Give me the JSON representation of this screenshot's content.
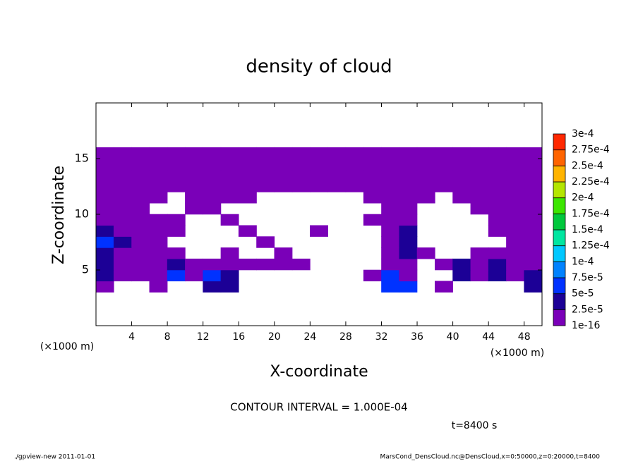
{
  "chart_data": {
    "type": "contour",
    "title": "density of cloud",
    "xlabel": "X-coordinate",
    "ylabel": "Z-coordinate",
    "x_unit": "(×1000 m)",
    "x": [
      1,
      3,
      5,
      7,
      9,
      11,
      13,
      15,
      17,
      19,
      21,
      23,
      25,
      27,
      29,
      31,
      33,
      35,
      37,
      39,
      41,
      43,
      45,
      47,
      49
    ],
    "z": [
      0.5,
      1.5,
      2.5,
      3.5,
      4.5,
      5.5,
      6.5,
      7.5,
      8.5,
      9.5,
      10.5,
      11.5,
      12.5,
      13.5,
      14.5,
      15.5,
      16.5,
      17.5,
      18.5,
      19.5
    ],
    "values": [
      [
        null,
        null,
        null,
        null,
        null,
        null,
        null,
        null,
        null,
        null,
        null,
        null,
        null,
        null,
        null,
        null,
        null,
        null,
        null,
        null,
        null,
        null,
        null,
        null,
        null
      ],
      [
        null,
        null,
        null,
        null,
        null,
        null,
        null,
        null,
        null,
        null,
        null,
        null,
        null,
        null,
        null,
        null,
        null,
        null,
        null,
        null,
        null,
        null,
        null,
        null,
        null
      ],
      [
        null,
        null,
        null,
        null,
        null,
        null,
        null,
        null,
        null,
        null,
        null,
        null,
        null,
        null,
        null,
        null,
        null,
        null,
        null,
        null,
        null,
        null,
        null,
        null,
        null
      ],
      [
        1e-05,
        null,
        null,
        1e-05,
        null,
        null,
        3e-05,
        3e-05,
        null,
        null,
        null,
        null,
        null,
        null,
        null,
        null,
        6e-05,
        6e-05,
        null,
        1e-05,
        null,
        null,
        null,
        null,
        3e-05
      ],
      [
        3e-05,
        1e-05,
        1e-05,
        1e-05,
        6e-05,
        1e-05,
        6e-05,
        3e-05,
        null,
        null,
        null,
        null,
        null,
        null,
        null,
        1e-05,
        6e-05,
        1e-05,
        null,
        null,
        3e-05,
        1e-05,
        3e-05,
        1e-05,
        3e-05
      ],
      [
        3e-05,
        1e-05,
        1e-05,
        1e-05,
        3e-05,
        1e-05,
        1e-05,
        1e-05,
        1e-05,
        1e-05,
        1e-05,
        1e-05,
        null,
        null,
        null,
        null,
        1e-05,
        1e-05,
        null,
        1e-05,
        3e-05,
        1e-05,
        3e-05,
        1e-05,
        1e-05
      ],
      [
        3e-05,
        1e-05,
        1e-05,
        1e-05,
        1e-05,
        null,
        null,
        1e-05,
        null,
        null,
        1e-05,
        null,
        null,
        null,
        null,
        null,
        1e-05,
        3e-05,
        1e-05,
        null,
        null,
        1e-05,
        1e-05,
        1e-05,
        1e-05
      ],
      [
        6e-05,
        3e-05,
        1e-05,
        1e-05,
        null,
        null,
        null,
        null,
        null,
        1e-05,
        null,
        null,
        null,
        null,
        null,
        null,
        1e-05,
        3e-05,
        null,
        null,
        null,
        null,
        null,
        1e-05,
        1e-05
      ],
      [
        3e-05,
        1e-05,
        1e-05,
        1e-05,
        1e-05,
        null,
        null,
        null,
        1e-05,
        null,
        null,
        null,
        1e-05,
        null,
        null,
        null,
        1e-05,
        3e-05,
        null,
        null,
        null,
        null,
        1e-05,
        1e-05,
        1e-05
      ],
      [
        1e-05,
        1e-05,
        1e-05,
        1e-05,
        1e-05,
        null,
        null,
        1e-05,
        null,
        null,
        null,
        null,
        null,
        null,
        null,
        1e-05,
        1e-05,
        1e-05,
        null,
        null,
        null,
        null,
        1e-05,
        1e-05,
        1e-05
      ],
      [
        1e-05,
        1e-05,
        1e-05,
        null,
        null,
        1e-05,
        1e-05,
        null,
        null,
        null,
        null,
        null,
        null,
        null,
        null,
        null,
        1e-05,
        1e-05,
        null,
        null,
        null,
        1e-05,
        1e-05,
        1e-05,
        1e-05
      ],
      [
        1e-05,
        1e-05,
        1e-05,
        1e-05,
        null,
        1e-05,
        1e-05,
        1e-05,
        1e-05,
        null,
        null,
        null,
        null,
        null,
        null,
        1e-05,
        1e-05,
        1e-05,
        1e-05,
        null,
        1e-05,
        1e-05,
        1e-05,
        1e-05,
        1e-05
      ],
      [
        1e-05,
        1e-05,
        1e-05,
        1e-05,
        1e-05,
        1e-05,
        1e-05,
        1e-05,
        1e-05,
        1e-05,
        1e-05,
        1e-05,
        1e-05,
        1e-05,
        1e-05,
        1e-05,
        1e-05,
        1e-05,
        1e-05,
        1e-05,
        1e-05,
        1e-05,
        1e-05,
        1e-05,
        1e-05
      ],
      [
        1e-05,
        1e-05,
        1e-05,
        1e-05,
        1e-05,
        1e-05,
        1e-05,
        1e-05,
        1e-05,
        1e-05,
        1e-05,
        1e-05,
        1e-05,
        1e-05,
        1e-05,
        1e-05,
        1e-05,
        1e-05,
        1e-05,
        1e-05,
        1e-05,
        1e-05,
        1e-05,
        1e-05,
        1e-05
      ],
      [
        1e-05,
        1e-05,
        1e-05,
        1e-05,
        1e-05,
        1e-05,
        1e-05,
        1e-05,
        1e-05,
        1e-05,
        1e-05,
        1e-05,
        1e-05,
        1e-05,
        1e-05,
        1e-05,
        1e-05,
        1e-05,
        1e-05,
        1e-05,
        1e-05,
        1e-05,
        1e-05,
        1e-05,
        1e-05
      ],
      [
        1e-05,
        1e-05,
        1e-05,
        1e-05,
        1e-05,
        1e-05,
        1e-05,
        1e-05,
        1e-05,
        1e-05,
        1e-05,
        1e-05,
        1e-05,
        1e-05,
        1e-05,
        1e-05,
        1e-05,
        1e-05,
        1e-05,
        1e-05,
        1e-05,
        1e-05,
        1e-05,
        1e-05,
        1e-05
      ],
      [
        null,
        null,
        null,
        null,
        null,
        null,
        null,
        null,
        null,
        null,
        null,
        null,
        null,
        null,
        null,
        null,
        null,
        null,
        null,
        null,
        null,
        null,
        null,
        null,
        null
      ],
      [
        null,
        null,
        null,
        null,
        null,
        null,
        null,
        null,
        null,
        null,
        null,
        null,
        null,
        null,
        null,
        null,
        null,
        null,
        null,
        null,
        null,
        null,
        null,
        null,
        null
      ],
      [
        null,
        null,
        null,
        null,
        null,
        null,
        null,
        null,
        null,
        null,
        null,
        null,
        null,
        null,
        null,
        null,
        null,
        null,
        null,
        null,
        null,
        null,
        null,
        null,
        null
      ],
      [
        null,
        null,
        null,
        null,
        null,
        null,
        null,
        null,
        null,
        null,
        null,
        null,
        null,
        null,
        null,
        null,
        null,
        null,
        null,
        null,
        null,
        null,
        null,
        null,
        null
      ]
    ],
    "xlim": [
      0,
      50
    ],
    "ylim": [
      0,
      20
    ],
    "xticks": [
      4,
      8,
      12,
      16,
      20,
      24,
      28,
      32,
      36,
      40,
      44,
      48
    ],
    "yticks": [
      5,
      10,
      15
    ],
    "levels": [
      1e-16,
      {
        "value": 2.5e-05,
        "label": "2.5e-5"
      },
      {
        "value": 5e-05,
        "label": "5e-5"
      },
      {
        "value": 7.5e-05,
        "label": "7.5e-5"
      },
      {
        "value": 0.0001,
        "label": "1e-4"
      },
      {
        "value": 0.000125,
        "label": "1.25e-4"
      },
      {
        "value": 0.00015,
        "label": "1.5e-4"
      },
      {
        "value": 0.000175,
        "label": "1.75e-4"
      },
      {
        "value": 0.0002,
        "label": "2e-4"
      },
      {
        "value": 0.000225,
        "label": "2.25e-4"
      },
      {
        "value": 0.00025,
        "label": "2.5e-4"
      },
      {
        "value": 0.000275,
        "label": "2.75e-4"
      },
      {
        "value": 0.0003,
        "label": "3e-4"
      }
    ],
    "colors": [
      "#7a00b8",
      "#1c0096",
      "#0032ff",
      "#0082ff",
      "#00c8ff",
      "#00e6a0",
      "#00c83c",
      "#3ce600",
      "#b4e600",
      "#ffb400",
      "#ff6400",
      "#ff2800",
      "#ff8c8c"
    ],
    "annotation": "CONTOUR INTERVAL = 1.000E-04",
    "time": "t=8400 s",
    "footer_left": "./gpview-new  2011-01-01",
    "footer_right": "MarsCond_DensCloud.nc@DensCloud,x=0:50000,z=0:20000,t=8400"
  }
}
